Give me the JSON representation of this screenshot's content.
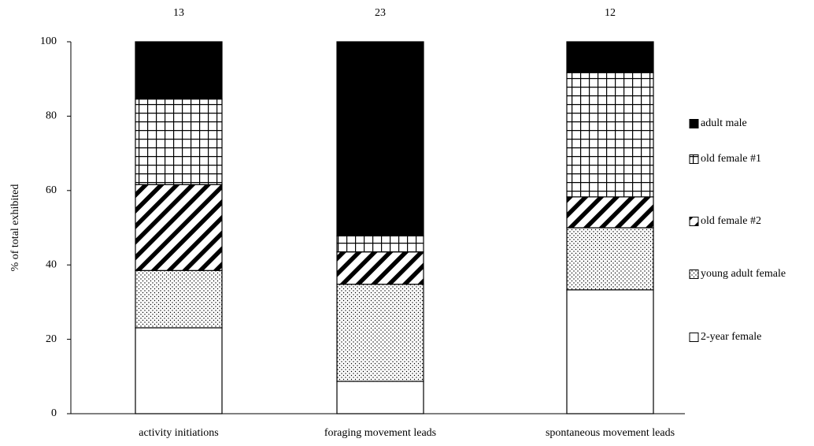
{
  "chart_data": {
    "type": "stacked_bar",
    "y_label": "% of total exhibited",
    "categories": [
      "activity initiations",
      "foraging movement leads",
      "spontaneous movement leads"
    ],
    "bar_labels": [
      13,
      23,
      12
    ],
    "series": [
      {
        "name": "2-year female",
        "color": "#000000",
        "pattern": "none",
        "values": [
          23.1,
          8.7,
          33.3
        ]
      },
      {
        "name": "young adult female",
        "color": "#000000",
        "pattern": "dots",
        "values": [
          15.4,
          26.1,
          16.7
        ]
      },
      {
        "name": "old female #2",
        "color": "#000000",
        "pattern": "diagonal",
        "values": [
          23.1,
          8.7,
          8.3
        ]
      },
      {
        "name": "old female #1",
        "color": "#000000",
        "pattern": "grid",
        "values": [
          23.0,
          4.3,
          33.4
        ]
      },
      {
        "name": "adult male",
        "color": "#000000",
        "pattern": "solid",
        "values": [
          15.4,
          52.2,
          8.3
        ]
      }
    ],
    "ylim": [
      0,
      100
    ],
    "yticks": [
      0,
      20,
      40,
      60,
      80,
      100
    ],
    "legend": "right"
  }
}
